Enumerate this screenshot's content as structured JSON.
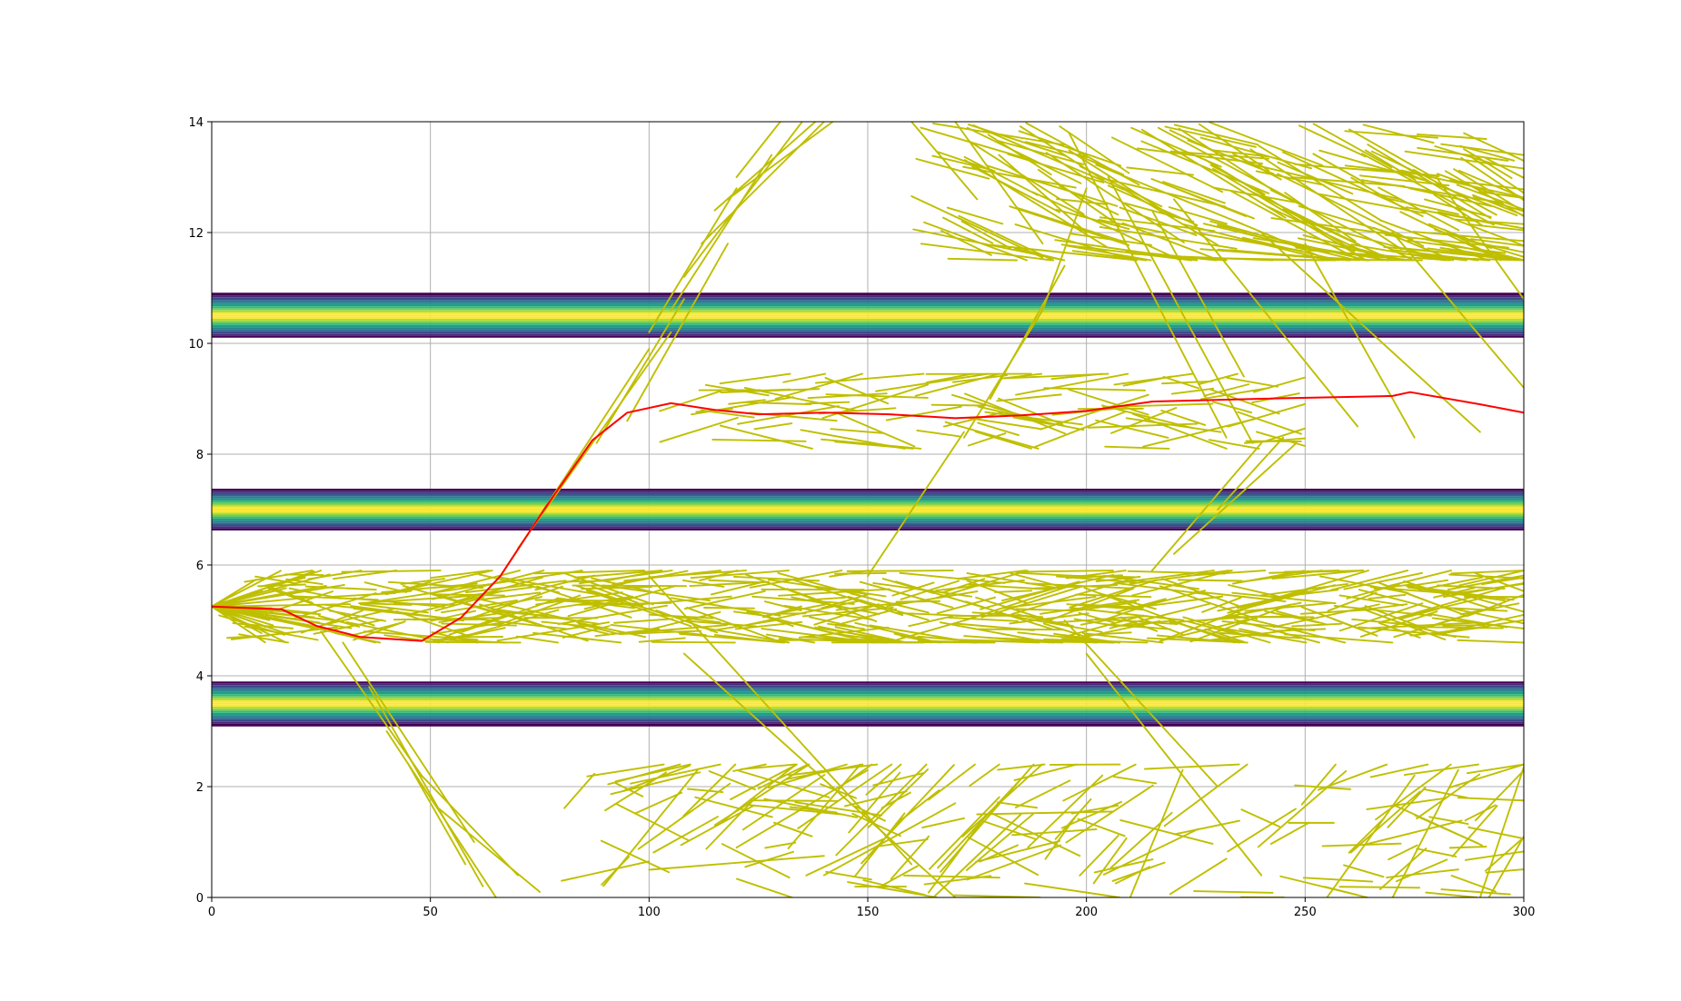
{
  "chart_data": {
    "type": "line",
    "title": "",
    "xlabel": "",
    "ylabel": "",
    "xlim": [
      0,
      300
    ],
    "ylim": [
      0,
      14
    ],
    "grid": true,
    "legend": "none",
    "x_ticks": [
      "0",
      "50",
      "100",
      "150",
      "200",
      "250",
      "300"
    ],
    "y_ticks": [
      "0",
      "2",
      "4",
      "6",
      "8",
      "10",
      "12",
      "14"
    ],
    "colors": {
      "explored_paths": "#bfbf00",
      "best_path": "#ff0000",
      "axes": "#000000",
      "grid": "#b0b0b0",
      "band_palette": [
        "#440154",
        "#482878",
        "#3e4989",
        "#31688e",
        "#26828e",
        "#1f9e89",
        "#35b779",
        "#6ece58",
        "#b5de2b",
        "#fde725"
      ]
    },
    "obstacle_bands": [
      {
        "center": 10.5,
        "half_width": 0.38
      },
      {
        "center": 7.0,
        "half_width": 0.36
      },
      {
        "center": 3.5,
        "half_width": 0.38
      }
    ],
    "obstacle_outline_lines": [
      10.9,
      3.1
    ],
    "best_path": {
      "x": [
        0,
        16,
        24,
        34,
        48,
        57,
        66,
        76,
        87,
        95,
        105,
        115,
        125,
        140,
        155,
        170,
        185,
        200,
        215,
        240,
        270,
        274,
        290,
        300
      ],
      "y": [
        5.25,
        5.2,
        4.9,
        4.7,
        4.63,
        5.05,
        5.8,
        7.0,
        8.25,
        8.75,
        8.92,
        8.8,
        8.72,
        8.75,
        8.72,
        8.65,
        8.7,
        8.78,
        8.95,
        9.0,
        9.05,
        9.12,
        8.9,
        8.75
      ]
    },
    "explored_clusters": [
      {
        "x_range": [
          0,
          300
        ],
        "y_range": [
          4.6,
          5.9
        ],
        "count": 420
      },
      {
        "x_range": [
          100,
          250
        ],
        "y_range": [
          8.1,
          9.45
        ],
        "count": 95
      },
      {
        "x_range": [
          160,
          300
        ],
        "y_range": [
          11.5,
          14
        ],
        "count": 200
      },
      {
        "x_range": [
          80,
          300
        ],
        "y_range": [
          0,
          2.4
        ],
        "count": 160
      }
    ]
  }
}
